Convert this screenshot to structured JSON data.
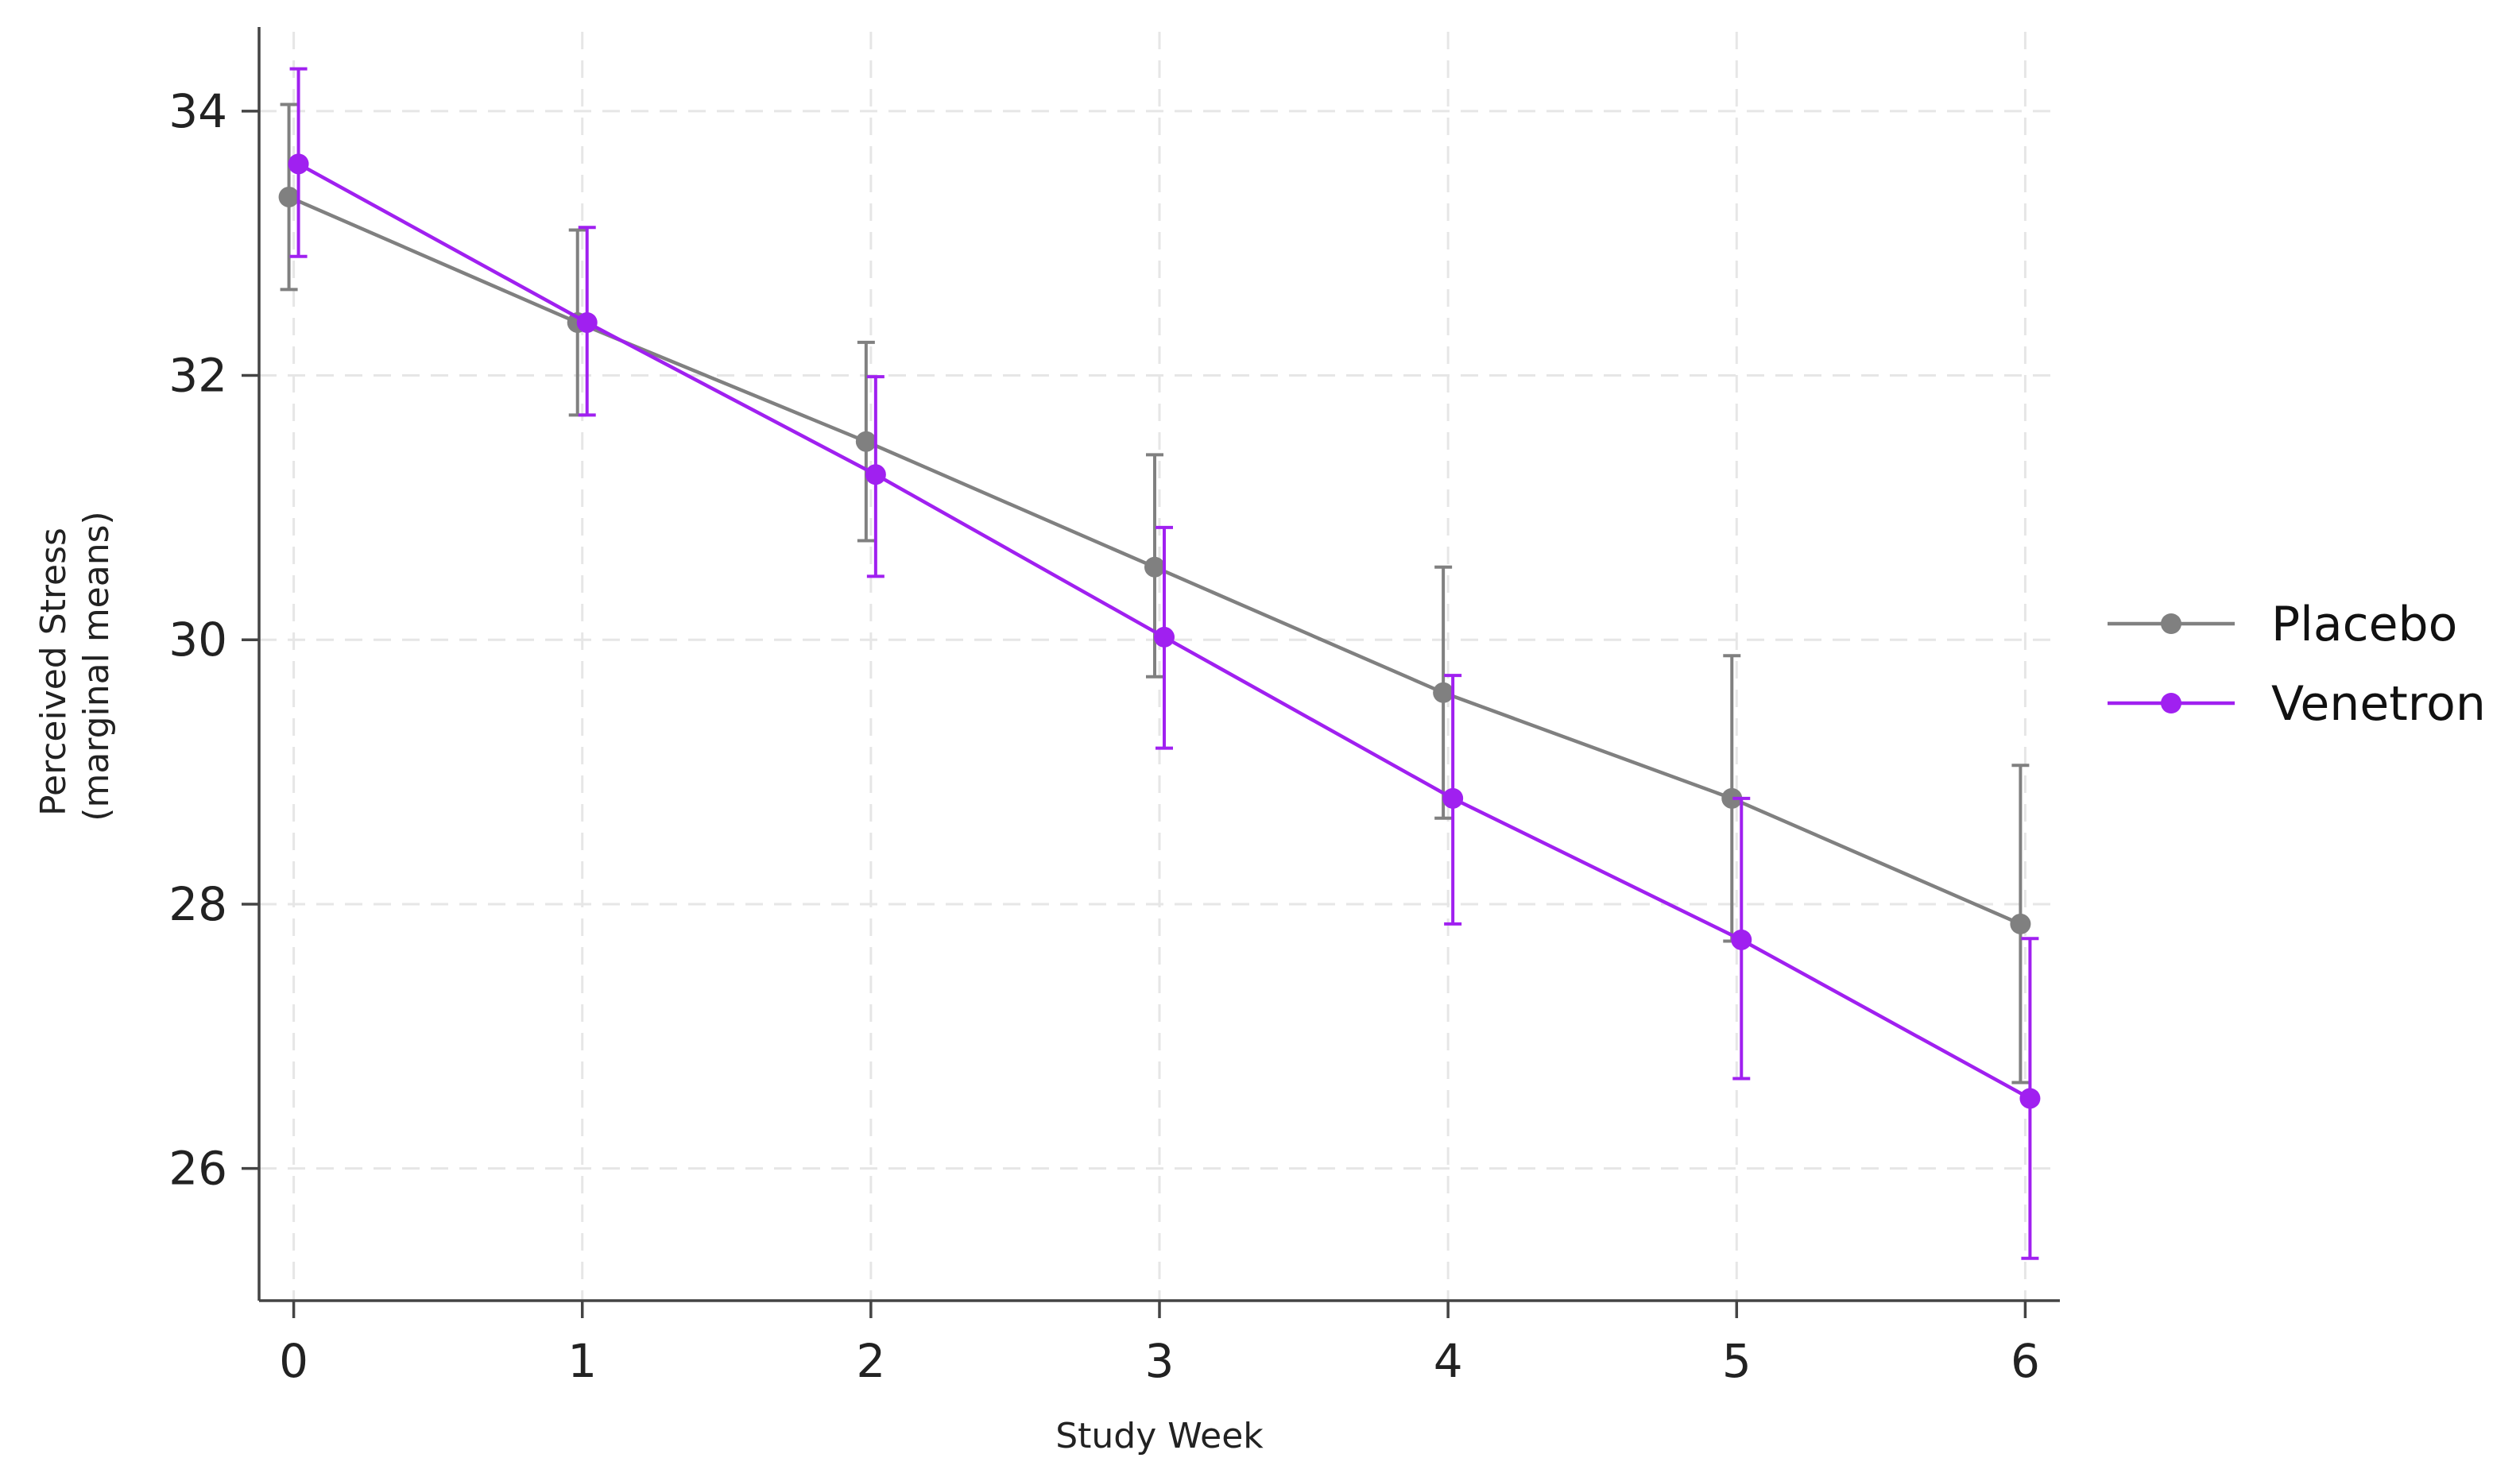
{
  "chart_data": {
    "type": "line",
    "title": "",
    "xlabel": "Study Week",
    "ylabel_lines": [
      "Perceived Stress",
      "(marginal means)"
    ],
    "x": [
      0,
      1,
      2,
      3,
      4,
      5,
      6
    ],
    "xticks": [
      "0",
      "1",
      "2",
      "3",
      "4",
      "5",
      "6"
    ],
    "yticks": [
      "26",
      "28",
      "30",
      "32",
      "34"
    ],
    "ylim": [
      25,
      34.6
    ],
    "xlim": [
      -0.12,
      6.12
    ],
    "grid": true,
    "legend_position": "right",
    "series": [
      {
        "name": "Placebo",
        "color": "#808080",
        "values": [
          33.35,
          32.4,
          31.5,
          30.55,
          29.6,
          28.8,
          27.85
        ],
        "ci_low": [
          32.65,
          31.7,
          30.75,
          29.72,
          28.65,
          27.72,
          26.65
        ],
        "ci_high": [
          34.05,
          33.1,
          32.25,
          31.4,
          30.55,
          29.88,
          29.05
        ]
      },
      {
        "name": "Venetron",
        "color": "#a020f0",
        "values": [
          33.6,
          32.4,
          31.25,
          30.02,
          28.8,
          27.73,
          26.53
        ],
        "ci_low": [
          32.9,
          31.7,
          30.48,
          29.18,
          27.85,
          26.68,
          25.32
        ],
        "ci_high": [
          34.32,
          33.12,
          31.99,
          30.85,
          29.73,
          28.8,
          27.74
        ]
      }
    ]
  }
}
